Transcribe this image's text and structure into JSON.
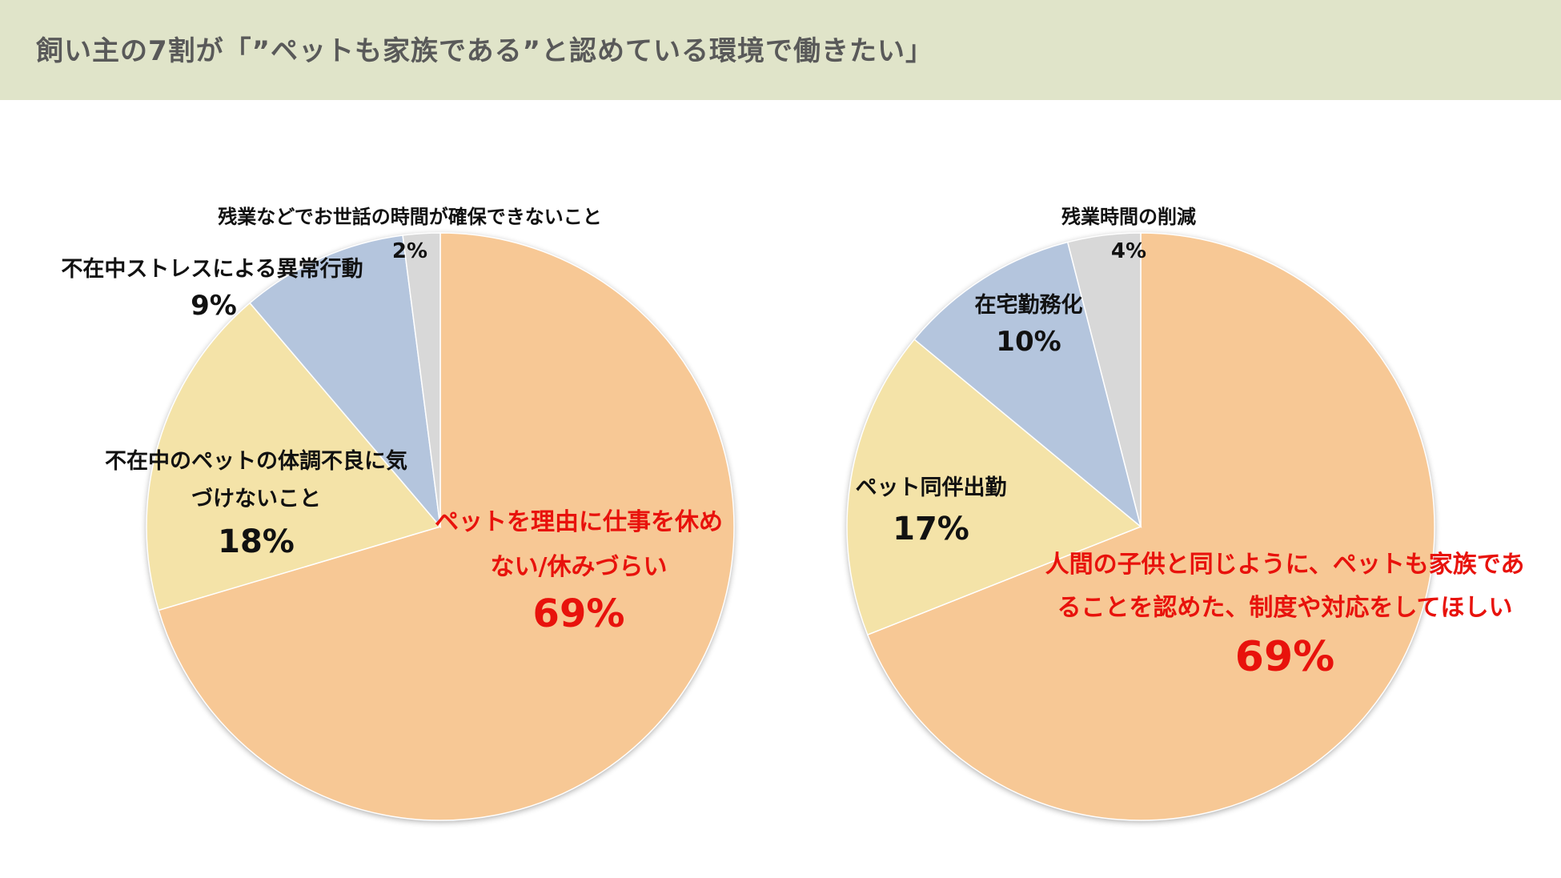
{
  "header": {
    "title": "飼い主の7割が「”ペットも家族である”と認めている環境で働きたい」"
  },
  "colors": {
    "header_bg": "#e0e4c9",
    "orange": "#f7c895",
    "yellow": "#f4e3a8",
    "blue": "#b4c5dd",
    "gray": "#d8d8d8",
    "highlight_text": "#e8120c"
  },
  "chart_data": [
    {
      "type": "pie",
      "start": "12 o'clock, clockwise",
      "slices": [
        {
          "label_lines": [
            "ペットを理由に仕事を休め",
            "ない/休みづらい"
          ],
          "value_label": "69%",
          "value": 69,
          "color": "orange",
          "highlight": true
        },
        {
          "label_lines": [
            "不在中のペットの体調不良に気",
            "づけないこと"
          ],
          "value_label": "18%",
          "value": 18,
          "color": "yellow",
          "highlight": false
        },
        {
          "label_lines": [
            "不在中ストレスによる異常行動"
          ],
          "value_label": "9%",
          "value": 9,
          "color": "blue",
          "highlight": false
        },
        {
          "label_lines": [
            "残業などでお世話の時間が確保できないこと"
          ],
          "value_label": "2%",
          "value": 2,
          "color": "gray",
          "highlight": false
        }
      ]
    },
    {
      "type": "pie",
      "start": "12 o'clock, clockwise",
      "slices": [
        {
          "label_lines": [
            "人間の子供と同じように、ペットも家族であ",
            "ることを認めた、制度や対応をしてほしい"
          ],
          "value_label": "69%",
          "value": 69,
          "color": "orange",
          "highlight": true
        },
        {
          "label_lines": [
            "ペット同伴出勤"
          ],
          "value_label": "17%",
          "value": 17,
          "color": "yellow",
          "highlight": false
        },
        {
          "label_lines": [
            "在宅勤務化"
          ],
          "value_label": "10%",
          "value": 10,
          "color": "blue",
          "highlight": false
        },
        {
          "label_lines": [
            "残業時間の削減"
          ],
          "value_label": "4%",
          "value": 4,
          "color": "gray",
          "highlight": false
        }
      ]
    }
  ]
}
